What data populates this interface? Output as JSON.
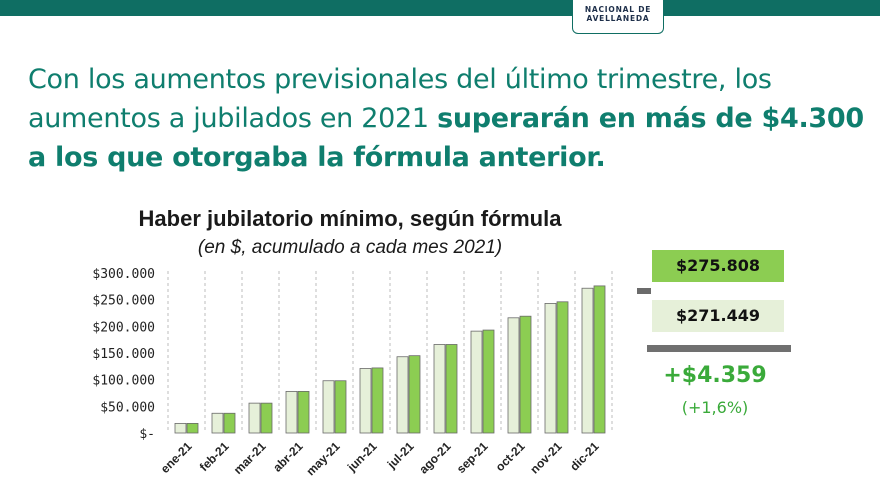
{
  "logo": {
    "line1": "NACIONAL DE",
    "line2": "AVELLANEDA"
  },
  "headline": {
    "part1": "Con los aumentos previsionales del último trimestre, los aumentos a jubilados en 2021 ",
    "bold": "superarán en más de $4.300 a los que otorgaba la fórmula anterior",
    "end": "."
  },
  "colors": {
    "brand": "#0f6e63",
    "headline": "#0f7e6e",
    "new_series": "#8ccd52",
    "old_series": "#e6f0d9",
    "diff": "#3aaa3a"
  },
  "chart_data": {
    "type": "bar",
    "title": "Haber jubilatorio mínimo, según fórmula",
    "subtitle": "(en $, acumulado a cada mes 2021)",
    "categories": [
      "ene-21",
      "feb-21",
      "mar-21",
      "abr-21",
      "may-21",
      "jun-21",
      "jul-21",
      "ago-21",
      "sep-21",
      "oct-21",
      "nov-21",
      "dic-21"
    ],
    "series": [
      {
        "values": [
          18000,
          37000,
          56000,
          78000,
          98000,
          121000,
          143000,
          166000,
          191000,
          216000,
          243000,
          271449
        ],
        "color": "#e6f0d9"
      },
      {
        "values": [
          18000,
          37000,
          56000,
          78000,
          98000,
          122000,
          145000,
          166000,
          193000,
          219000,
          246000,
          275808
        ],
        "color": "#8ccd52"
      }
    ],
    "yticks": [
      "$300.000",
      "$250.000",
      "$200.000",
      "$150.000",
      "$100.000",
      "$50.000",
      "$-"
    ],
    "ytick_values": [
      300000,
      250000,
      200000,
      150000,
      100000,
      50000,
      0
    ],
    "ylim": [
      0,
      300000
    ],
    "grid": true
  },
  "summary": {
    "new_total": "$275.808",
    "old_total": "$271.449",
    "difference": "+$4.359",
    "difference_pct": "(+1,6%)"
  }
}
